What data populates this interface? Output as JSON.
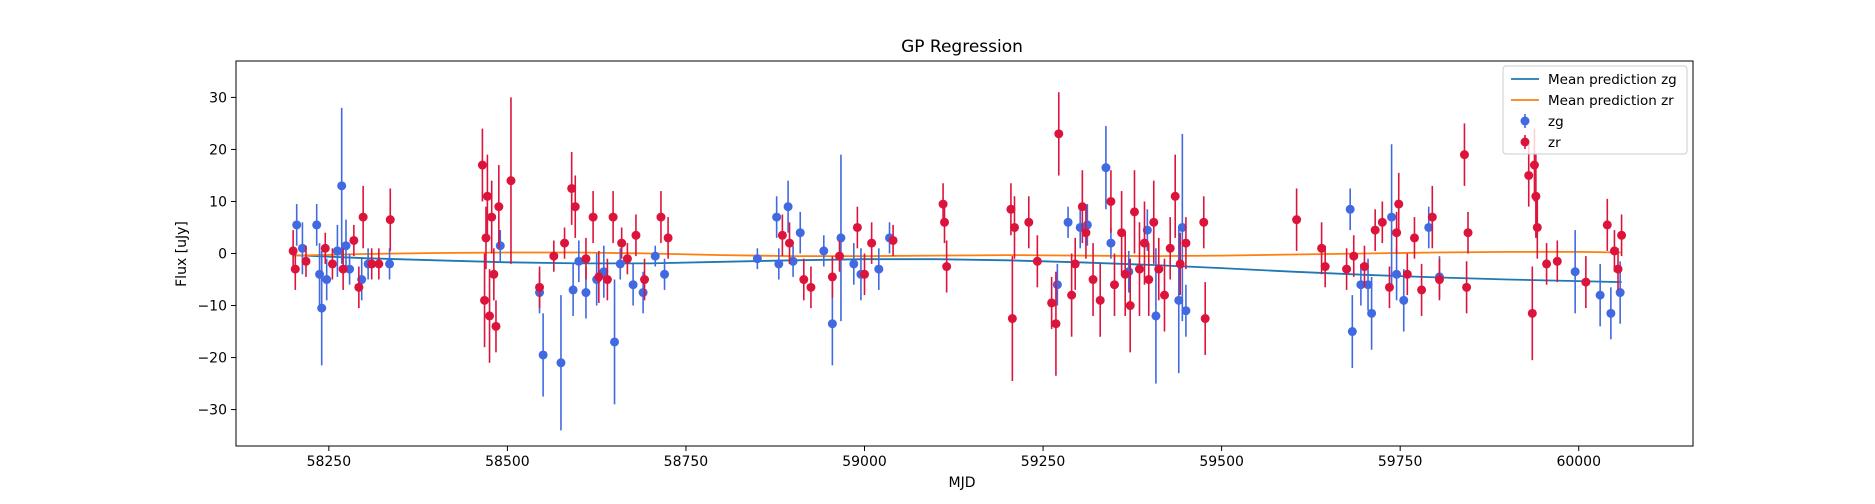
{
  "chart_data": {
    "type": "scatter",
    "title": "GP Regression",
    "xlabel": "MJD",
    "ylabel": "Flux [uJy]",
    "xlim": [
      58120,
      60160
    ],
    "ylim": [
      -37,
      37
    ],
    "xticks": [
      58250,
      58500,
      58750,
      59000,
      59250,
      59500,
      59750,
      60000
    ],
    "yticks": [
      -30,
      -20,
      -10,
      0,
      10,
      20,
      30
    ],
    "grid": false,
    "legend_position": "top-right",
    "colors": {
      "zg_line": "#1f77b4",
      "zr_line": "#ff7f0e",
      "zg_points": "#4169e1",
      "zr_points": "#dc143c"
    },
    "lines": [
      {
        "name": "Mean prediction zg",
        "x": [
          58200,
          58300,
          58400,
          58500,
          58600,
          58700,
          58800,
          58900,
          59000,
          59100,
          59200,
          59300,
          59400,
          59500,
          59600,
          59700,
          59800,
          59900,
          60000,
          60060
        ],
        "y": [
          -0.3,
          -0.9,
          -1.3,
          -1.7,
          -1.9,
          -1.9,
          -1.6,
          -1.3,
          -1.1,
          -1.1,
          -1.3,
          -1.7,
          -2.2,
          -2.8,
          -3.5,
          -4.1,
          -4.6,
          -5.0,
          -5.3,
          -5.5
        ]
      },
      {
        "name": "Mean prediction zr",
        "x": [
          58200,
          58300,
          58400,
          58500,
          58600,
          58700,
          58800,
          58900,
          59000,
          59100,
          59200,
          59300,
          59400,
          59500,
          59600,
          59700,
          59800,
          59900,
          60000,
          60060
        ],
        "y": [
          -0.4,
          -0.1,
          0.1,
          0.2,
          0.2,
          0.0,
          -0.3,
          -0.5,
          -0.5,
          -0.4,
          -0.3,
          -0.4,
          -0.5,
          -0.4,
          -0.2,
          0.0,
          0.2,
          0.3,
          0.3,
          0.2
        ]
      }
    ],
    "series": [
      {
        "name": "zg",
        "points": [
          [
            58205,
            5.5,
            4
          ],
          [
            58213,
            1.0,
            5
          ],
          [
            58233,
            5.5,
            4
          ],
          [
            58237,
            -4.0,
            6
          ],
          [
            58240,
            -10.5,
            11
          ],
          [
            58247,
            -5.0,
            4
          ],
          [
            58262,
            0.5,
            5
          ],
          [
            58268,
            13.0,
            15
          ],
          [
            58274,
            1.5,
            5
          ],
          [
            58279,
            -3.0,
            3
          ],
          [
            58296,
            -5.0,
            4
          ],
          [
            58305,
            -2.0,
            3
          ],
          [
            58335,
            -2.0,
            3
          ],
          [
            58490,
            1.5,
            3
          ],
          [
            58545,
            -7.5,
            4
          ],
          [
            58550,
            -19.5,
            8
          ],
          [
            58575,
            -21.0,
            13
          ],
          [
            58592,
            -7.0,
            5
          ],
          [
            58600,
            -1.5,
            4
          ],
          [
            58610,
            -7.5,
            5
          ],
          [
            58625,
            -5.0,
            5
          ],
          [
            58635,
            -3.5,
            5
          ],
          [
            58650,
            -17.0,
            12
          ],
          [
            58658,
            -2.0,
            3
          ],
          [
            58676,
            -6.0,
            4
          ],
          [
            58690,
            -7.5,
            4
          ],
          [
            58707,
            -0.5,
            2
          ],
          [
            58720,
            -4.0,
            3
          ],
          [
            58850,
            -1.0,
            2
          ],
          [
            58877,
            7.0,
            4
          ],
          [
            58880,
            -2.0,
            3
          ],
          [
            58893,
            9.0,
            5
          ],
          [
            58900,
            -1.5,
            3
          ],
          [
            58910,
            4.0,
            4
          ],
          [
            58943,
            0.5,
            3
          ],
          [
            58955,
            -13.5,
            8
          ],
          [
            58967,
            3.0,
            16
          ],
          [
            58985,
            -2.0,
            4
          ],
          [
            58995,
            -4.0,
            5
          ],
          [
            59020,
            -3.0,
            4
          ],
          [
            59035,
            3.0,
            3
          ],
          [
            59270,
            -6.0,
            4
          ],
          [
            59285,
            6.0,
            3
          ],
          [
            59302,
            5.0,
            4
          ],
          [
            59312,
            5.5,
            4
          ],
          [
            59338,
            16.5,
            8
          ],
          [
            59345,
            2.0,
            3
          ],
          [
            59370,
            -3.5,
            4
          ],
          [
            59396,
            4.5,
            4
          ],
          [
            59408,
            -12.0,
            13
          ],
          [
            59440,
            -9.0,
            14
          ],
          [
            59445,
            5.0,
            18
          ],
          [
            59450,
            -11.0,
            5
          ],
          [
            59680,
            8.5,
            4
          ],
          [
            59683,
            -15.0,
            7
          ],
          [
            59695,
            -6.0,
            4
          ],
          [
            59705,
            -6.0,
            5
          ],
          [
            59710,
            -11.5,
            7
          ],
          [
            59738,
            7.0,
            14
          ],
          [
            59745,
            -4.0,
            5
          ],
          [
            59755,
            -9.0,
            6
          ],
          [
            59790,
            5.0,
            4
          ],
          [
            59805,
            -4.5,
            4
          ],
          [
            59995,
            -3.5,
            8
          ],
          [
            60030,
            -8.0,
            6
          ],
          [
            60045,
            -11.5,
            5
          ],
          [
            60058,
            -7.5,
            6
          ]
        ]
      },
      {
        "name": "zr",
        "points": [
          [
            58200,
            0.5,
            4
          ],
          [
            58203,
            -3.0,
            4
          ],
          [
            58218,
            -1.5,
            3
          ],
          [
            58245,
            1.0,
            3
          ],
          [
            58255,
            -2.0,
            3
          ],
          [
            58270,
            -3.0,
            4
          ],
          [
            58285,
            2.5,
            3
          ],
          [
            58292,
            -6.5,
            4
          ],
          [
            58298,
            7.0,
            6
          ],
          [
            58310,
            -2.0,
            3
          ],
          [
            58320,
            -2.0,
            3
          ],
          [
            58336,
            6.5,
            6
          ],
          [
            58465,
            17.0,
            7
          ],
          [
            58468,
            -9.0,
            9
          ],
          [
            58470,
            3.0,
            6
          ],
          [
            58472,
            11.0,
            8
          ],
          [
            58475,
            -12.0,
            9
          ],
          [
            58478,
            7.0,
            7
          ],
          [
            58481,
            -4.0,
            5
          ],
          [
            58484,
            -14.0,
            5
          ],
          [
            58488,
            9.0,
            8
          ],
          [
            58505,
            14.0,
            16
          ],
          [
            58545,
            -6.5,
            4
          ],
          [
            58565,
            -0.5,
            3
          ],
          [
            58580,
            2.0,
            3
          ],
          [
            58590,
            12.5,
            7
          ],
          [
            58595,
            9.0,
            6
          ],
          [
            58610,
            -1.0,
            4
          ],
          [
            58620,
            7.0,
            5
          ],
          [
            58628,
            -4.5,
            5
          ],
          [
            58640,
            -5.0,
            4
          ],
          [
            58648,
            7.0,
            5
          ],
          [
            58660,
            2.0,
            3
          ],
          [
            58668,
            -1.0,
            3
          ],
          [
            58680,
            3.5,
            4
          ],
          [
            58692,
            -5.0,
            4
          ],
          [
            58715,
            7.0,
            5
          ],
          [
            58725,
            3.0,
            4
          ],
          [
            58885,
            3.5,
            4
          ],
          [
            58895,
            2.0,
            4
          ],
          [
            58915,
            -5.0,
            4
          ],
          [
            58925,
            -6.5,
            4
          ],
          [
            58955,
            -4.5,
            4
          ],
          [
            58965,
            -0.5,
            3
          ],
          [
            58990,
            5.0,
            4
          ],
          [
            59000,
            -4.0,
            4
          ],
          [
            59010,
            2.0,
            4
          ],
          [
            59040,
            2.5,
            3
          ],
          [
            59110,
            9.5,
            4
          ],
          [
            59112,
            6.0,
            4
          ],
          [
            59115,
            -2.5,
            5
          ],
          [
            59205,
            8.5,
            5
          ],
          [
            59207,
            -12.5,
            12
          ],
          [
            59210,
            5.0,
            6
          ],
          [
            59230,
            6.0,
            5
          ],
          [
            59242,
            -1.5,
            5
          ],
          [
            59262,
            -9.5,
            5
          ],
          [
            59268,
            -13.5,
            10
          ],
          [
            59272,
            23.0,
            8
          ],
          [
            59290,
            -8.0,
            8
          ],
          [
            59295,
            -2.0,
            5
          ],
          [
            59305,
            9.0,
            7
          ],
          [
            59310,
            4.0,
            5
          ],
          [
            59320,
            -5.0,
            7
          ],
          [
            59330,
            -9.0,
            7
          ],
          [
            59345,
            10.0,
            6
          ],
          [
            59350,
            -6.0,
            6
          ],
          [
            59360,
            4.0,
            8
          ],
          [
            59365,
            -4.0,
            8
          ],
          [
            59372,
            -10.0,
            9
          ],
          [
            59378,
            8.0,
            8
          ],
          [
            59385,
            -3.0,
            9
          ],
          [
            59392,
            2.0,
            8
          ],
          [
            59398,
            -5.0,
            7
          ],
          [
            59405,
            6.0,
            8
          ],
          [
            59412,
            -3.0,
            6
          ],
          [
            59420,
            -8.0,
            7
          ],
          [
            59428,
            1.0,
            6
          ],
          [
            59435,
            11.0,
            8
          ],
          [
            59442,
            -2.0,
            6
          ],
          [
            59450,
            2.0,
            5
          ],
          [
            59475,
            6.0,
            5
          ],
          [
            59477,
            -12.5,
            7
          ],
          [
            59605,
            6.5,
            6
          ],
          [
            59640,
            1.0,
            5
          ],
          [
            59645,
            -2.5,
            4
          ],
          [
            59675,
            -3.0,
            4
          ],
          [
            59685,
            -0.5,
            4
          ],
          [
            59700,
            -2.5,
            4
          ],
          [
            59715,
            4.5,
            4
          ],
          [
            59725,
            6.0,
            4
          ],
          [
            59735,
            -6.5,
            4
          ],
          [
            59745,
            4.0,
            4
          ],
          [
            59748,
            9.5,
            6
          ],
          [
            59760,
            -4.0,
            4
          ],
          [
            59770,
            3.0,
            4
          ],
          [
            59780,
            -7.0,
            5
          ],
          [
            59795,
            7.0,
            6
          ],
          [
            59805,
            -5.0,
            4
          ],
          [
            59840,
            19.0,
            6
          ],
          [
            59843,
            -6.5,
            5
          ],
          [
            59845,
            4.0,
            4
          ],
          [
            59930,
            15.0,
            6
          ],
          [
            59935,
            -11.5,
            9
          ],
          [
            59938,
            17.0,
            7
          ],
          [
            59940,
            11.0,
            8
          ],
          [
            59942,
            5.0,
            6
          ],
          [
            59955,
            -2.0,
            4
          ],
          [
            59970,
            -1.5,
            4
          ],
          [
            60010,
            -5.5,
            5
          ],
          [
            60040,
            5.5,
            5
          ],
          [
            60050,
            0.5,
            4
          ],
          [
            60055,
            -3.0,
            4
          ],
          [
            60060,
            3.5,
            4
          ]
        ]
      }
    ]
  }
}
